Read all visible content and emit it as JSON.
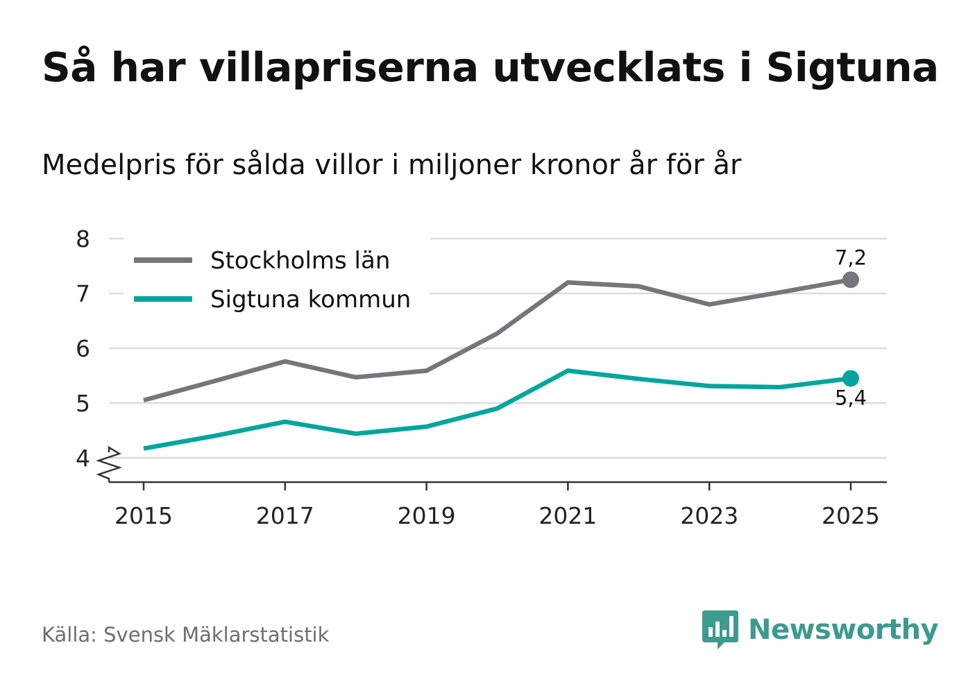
{
  "header": {
    "title": "Så har villapriserna utvecklats i Sigtuna",
    "subtitle": "Medelpris för sålda villor i miljoner kronor år för år"
  },
  "footer": {
    "source": "Källa: Svensk Mäklarstatistik",
    "brand": "Newsworthy",
    "brand_icon": "bar-chart-speech-bubble-icon",
    "brand_color": "#3d9a8f"
  },
  "chart_data": {
    "type": "line",
    "title": "Så har villapriserna utvecklats i Sigtuna",
    "subtitle": "Medelpris för sålda villor i miljoner kronor år för år",
    "xlabel": "",
    "ylabel": "",
    "x": [
      2015,
      2016,
      2017,
      2018,
      2019,
      2020,
      2021,
      2022,
      2023,
      2024,
      2025
    ],
    "x_ticks": [
      "2015",
      "2017",
      "2019",
      "2021",
      "2023",
      "2025"
    ],
    "y_ticks": [
      "4",
      "5",
      "6",
      "7",
      "8"
    ],
    "ylim": [
      4,
      8
    ],
    "y_axis_break": true,
    "grid": true,
    "legend_position": "top-left",
    "series": [
      {
        "name": "Stockholms län",
        "color": "#75757c",
        "values": [
          5.05,
          5.4,
          5.76,
          5.47,
          5.59,
          6.27,
          7.2,
          7.13,
          6.8,
          7.02,
          7.25
        ],
        "end_label": "7,2"
      },
      {
        "name": "Sigtuna kommun",
        "color": "#00a69c",
        "values": [
          4.17,
          4.4,
          4.66,
          4.44,
          4.57,
          4.9,
          5.59,
          5.44,
          5.31,
          5.29,
          5.45
        ],
        "end_label": "5,4"
      }
    ]
  }
}
